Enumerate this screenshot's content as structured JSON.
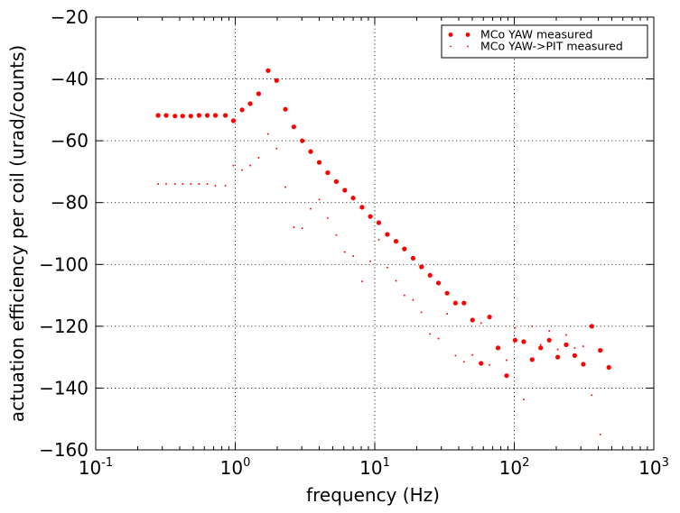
{
  "chart_data": {
    "type": "scatter",
    "x_scale": "log",
    "xlim": [
      0.1,
      1000
    ],
    "ylim": [
      -160,
      -20
    ],
    "xlabel": "frequency (Hz)",
    "ylabel": "actuation efficiency per coil (urad/counts)",
    "x_ticks": [
      {
        "base": "10",
        "exp": "-1",
        "value": 0.1
      },
      {
        "base": "10",
        "exp": "0",
        "value": 1
      },
      {
        "base": "10",
        "exp": "1",
        "value": 10
      },
      {
        "base": "10",
        "exp": "2",
        "value": 100
      },
      {
        "base": "10",
        "exp": "3",
        "value": 1000
      }
    ],
    "y_ticks": [
      "−20",
      "−40",
      "−60",
      "−80",
      "−100",
      "−120",
      "−140",
      "−160"
    ],
    "y_tick_values": [
      -20,
      -40,
      -60,
      -80,
      -100,
      -120,
      -140,
      -160
    ],
    "grid": true,
    "legend_position": "top-right",
    "series": [
      {
        "name": "MCo YAW measured",
        "color": "#ff0000",
        "marker": "large-dot",
        "points": [
          [
            0.28,
            -51.8
          ],
          [
            0.32,
            -51.8
          ],
          [
            0.37,
            -52
          ],
          [
            0.42,
            -52
          ],
          [
            0.48,
            -52
          ],
          [
            0.55,
            -51.8
          ],
          [
            0.63,
            -51.8
          ],
          [
            0.72,
            -51.8
          ],
          [
            0.85,
            -51.8
          ],
          [
            0.97,
            -53.5
          ],
          [
            1.12,
            -50
          ],
          [
            1.28,
            -48
          ],
          [
            1.47,
            -44.8
          ],
          [
            1.72,
            -37.3
          ],
          [
            1.98,
            -40.5
          ],
          [
            2.29,
            -49.8
          ],
          [
            2.63,
            -55.5
          ],
          [
            3.02,
            -60
          ],
          [
            3.47,
            -63.5
          ],
          [
            4.0,
            -67
          ],
          [
            4.6,
            -70.3
          ],
          [
            5.3,
            -73.2
          ],
          [
            6.1,
            -76
          ],
          [
            7.0,
            -78.5
          ],
          [
            8.1,
            -81.5
          ],
          [
            9.3,
            -84.5
          ],
          [
            10.7,
            -86.5
          ],
          [
            12.3,
            -90.3
          ],
          [
            14.2,
            -92.5
          ],
          [
            16.3,
            -95
          ],
          [
            18.8,
            -98
          ],
          [
            21.6,
            -100.8
          ],
          [
            24.9,
            -103.5
          ],
          [
            28.6,
            -106
          ],
          [
            33.0,
            -109.3
          ],
          [
            37.9,
            -112.5
          ],
          [
            43.6,
            -112.5
          ],
          [
            50.2,
            -118
          ],
          [
            57.8,
            -132
          ],
          [
            66.5,
            -117
          ],
          [
            76.5,
            -127
          ],
          [
            88.1,
            -136
          ],
          [
            101.4,
            -124.5
          ],
          [
            116.7,
            -125
          ],
          [
            134.3,
            -130.8
          ],
          [
            154.6,
            -127
          ],
          [
            177.9,
            -124.5
          ],
          [
            204.8,
            -130
          ],
          [
            235.7,
            -126
          ],
          [
            271.2,
            -129.5
          ],
          [
            312.1,
            -132.3
          ],
          [
            359.2,
            -120
          ],
          [
            413.4,
            -127.8
          ],
          [
            475.8,
            -133.3
          ]
        ]
      },
      {
        "name": "MCo YAW->PIT measured",
        "color": "#ff0000",
        "marker": "small-dot",
        "points": [
          [
            0.28,
            -74
          ],
          [
            0.32,
            -74
          ],
          [
            0.37,
            -74
          ],
          [
            0.42,
            -74
          ],
          [
            0.48,
            -74
          ],
          [
            0.55,
            -74
          ],
          [
            0.63,
            -74
          ],
          [
            0.72,
            -74.5
          ],
          [
            0.85,
            -74.5
          ],
          [
            0.97,
            -68
          ],
          [
            1.12,
            -69.5
          ],
          [
            1.28,
            -68
          ],
          [
            1.47,
            -65.5
          ],
          [
            1.72,
            -57.8
          ],
          [
            1.98,
            -62.5
          ],
          [
            2.29,
            -75
          ],
          [
            2.63,
            -88
          ],
          [
            3.02,
            -88.3
          ],
          [
            3.47,
            -82
          ],
          [
            4.0,
            -79
          ],
          [
            4.6,
            -85
          ],
          [
            5.3,
            -90.5
          ],
          [
            6.1,
            -96
          ],
          [
            7.0,
            -97.3
          ],
          [
            8.1,
            -105.5
          ],
          [
            9.3,
            -99
          ],
          [
            10.7,
            -92
          ],
          [
            12.3,
            -101
          ],
          [
            14.2,
            -105.3
          ],
          [
            16.3,
            -110
          ],
          [
            18.8,
            -111.5
          ],
          [
            21.6,
            -115.5
          ],
          [
            24.9,
            -122.5
          ],
          [
            28.6,
            -124
          ],
          [
            33.0,
            -116
          ],
          [
            37.9,
            -129.5
          ],
          [
            43.6,
            -131.5
          ],
          [
            50.2,
            -129.3
          ],
          [
            57.8,
            -119
          ],
          [
            66.5,
            -132.5
          ],
          [
            76.5,
            -126.8
          ],
          [
            88.1,
            -131
          ],
          [
            101.4,
            -120.5
          ],
          [
            116.7,
            -143.7
          ],
          [
            134.3,
            -120
          ],
          [
            154.6,
            -126
          ],
          [
            177.9,
            -121.5
          ],
          [
            204.8,
            -127.5
          ],
          [
            235.7,
            -122.8
          ],
          [
            271.2,
            -127
          ],
          [
            312.1,
            -126.5
          ],
          [
            359.2,
            -142.3
          ],
          [
            413.4,
            -155
          ]
        ]
      }
    ]
  }
}
